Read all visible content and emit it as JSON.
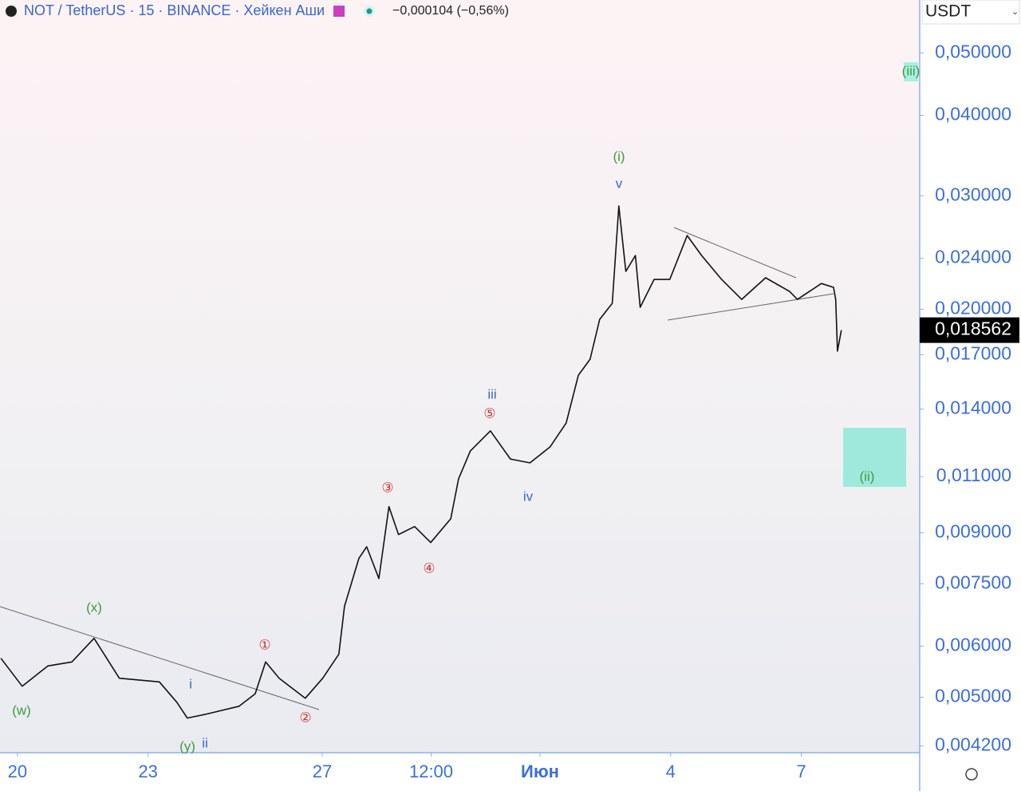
{
  "chart_data": {
    "type": "line",
    "title": "NOT / TetherUS · 15 · BINANCE · Хейкен Аши",
    "change": "−0,000104 (−0,56%)",
    "currency": "USDT",
    "log_scale": true,
    "color": "#111111",
    "x": [
      19.62,
      20.11,
      20.7,
      21.25,
      21.76,
      22.34,
      23.26,
      23.66,
      23.9,
      24.36,
      25.09,
      25.46,
      25.7,
      26.01,
      26.61,
      27.01,
      27.38,
      27.51,
      27.84,
      28.02,
      28.3,
      28.53,
      28.75,
      29.12,
      29.49,
      29.95,
      30.13,
      30.4,
      30.86,
      31.32,
      31.77,
      32.23,
      32.6,
      32.88,
      33.15,
      33.37,
      33.66,
      33.81,
      33.97,
      34.19,
      34.3,
      34.62,
      34.98,
      35.38,
      35.71,
      36.17,
      36.63,
      37.18,
      37.73,
      37.91,
      38.46,
      38.74,
      38.79,
      38.83,
      38.92
    ],
    "values": [
      0.005745,
      0.0052,
      0.00559,
      0.00567,
      0.00617,
      0.00535,
      0.00528,
      0.00491,
      0.00464,
      0.00471,
      0.00484,
      0.00506,
      0.00567,
      0.00535,
      0.00498,
      0.00535,
      0.00583,
      0.00692,
      0.00821,
      0.00856,
      0.00764,
      0.00988,
      0.00894,
      0.0092,
      0.00869,
      0.00946,
      0.01091,
      0.01205,
      0.01295,
      0.01171,
      0.01155,
      0.01223,
      0.01332,
      0.0158,
      0.01673,
      0.01929,
      0.02043,
      0.02893,
      0.0229,
      0.02424,
      0.02014,
      0.02225,
      0.02225,
      0.02603,
      0.02424,
      0.02225,
      0.02072,
      0.02238,
      0.02132,
      0.02072,
      0.02193,
      0.02163,
      0.02072,
      0.01722,
      0.018562
    ],
    "last_price": {
      "value": 0.018562,
      "label": "0,018562"
    },
    "xlim": [
      19.6,
      40.7
    ],
    "xticks": [
      20,
      23,
      27,
      {
        "value": 29.5,
        "label": "12:00"
      },
      {
        "value": 32,
        "label": "Июн"
      },
      {
        "value": 35,
        "label": "4"
      },
      {
        "value": 38,
        "label": "7"
      }
    ],
    "ylim": [
      0.0041,
      0.0604
    ],
    "yticks": [
      {
        "value": 0.0042,
        "label": "0,004200"
      },
      {
        "value": 0.005,
        "label": "0,005000"
      },
      {
        "value": 0.006,
        "label": "0,006000"
      },
      {
        "value": 0.0075,
        "label": "0,007500"
      },
      {
        "value": 0.009,
        "label": "0,009000"
      },
      {
        "value": 0.011,
        "label": "0,011000"
      },
      {
        "value": 0.014,
        "label": "0,014000"
      },
      {
        "value": 0.017,
        "label": "0,017000"
      },
      {
        "value": 0.02,
        "label": "0,020000"
      },
      {
        "value": 0.024,
        "label": "0,024000"
      },
      {
        "value": 0.03,
        "label": "0,030000"
      },
      {
        "value": 0.04,
        "label": "0,040000"
      },
      {
        "value": 0.05,
        "label": "0,050000"
      }
    ],
    "annotations": [
      "(w)",
      "(x)",
      "(y)",
      "i",
      "ii",
      "iii",
      "iv",
      "v",
      "(i)",
      "(ii)",
      "(iii)",
      "①",
      "②",
      "③",
      "④",
      "⑤"
    ]
  }
}
